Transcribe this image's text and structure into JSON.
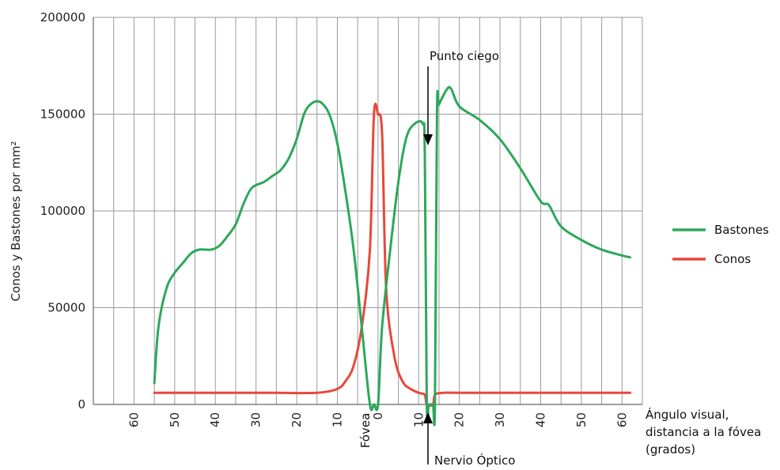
{
  "chart_data": {
    "type": "line",
    "title": "",
    "ylabel": "Conos y Bastones por mm²",
    "xlabel": "Ángulo visual, distancia a la fóvea (grados)",
    "xlabel_lines": [
      "Ángulo visual,",
      "distancia a la fóvea",
      "(grados)"
    ],
    "ylim": [
      0,
      200000
    ],
    "xlim": [
      -70,
      65
    ],
    "y_ticks": [
      0,
      50000,
      100000,
      150000,
      200000
    ],
    "y_tick_labels": [
      "0",
      "50000",
      "100000",
      "150000",
      "200000"
    ],
    "x_ticks": [
      -60,
      -50,
      -40,
      -30,
      -20,
      -10,
      0,
      10,
      20,
      30,
      40,
      50,
      60
    ],
    "x_tick_labels": [
      "60",
      "50",
      "40",
      "30",
      "20",
      "10",
      "0",
      "10",
      "20",
      "30",
      "40",
      "50",
      "60"
    ],
    "grid": true,
    "legend_position": "right",
    "series": [
      {
        "name": "Bastones",
        "color": "#2ca85a",
        "x": [
          -55,
          -54,
          -52,
          -50,
          -48,
          -46,
          -44,
          -41,
          -39,
          -37,
          -35,
          -33,
          -31,
          -28,
          -26,
          -24,
          -22,
          -20,
          -18,
          -16,
          -14,
          -12,
          -10,
          -8,
          -6,
          -4,
          -2,
          -1,
          0,
          1,
          3,
          5,
          7,
          9,
          11,
          11.5,
          12,
          12.5,
          13.5,
          14,
          14.5,
          15,
          17,
          18,
          20,
          25,
          30,
          35,
          40,
          42,
          45,
          50,
          55,
          60,
          62
        ],
        "y": [
          11000,
          40000,
          60000,
          68000,
          73000,
          78000,
          80000,
          80000,
          82000,
          87000,
          93000,
          104000,
          112000,
          115000,
          118000,
          121000,
          127000,
          137000,
          151000,
          156000,
          156000,
          150000,
          135000,
          110000,
          80000,
          40000,
          0,
          0,
          0,
          40000,
          80000,
          115000,
          138000,
          145000,
          145000,
          130000,
          0,
          0,
          0,
          0,
          150000,
          155000,
          163000,
          163000,
          154000,
          147000,
          137000,
          122000,
          105000,
          103000,
          92000,
          85000,
          80000,
          77000,
          76000
        ]
      },
      {
        "name": "Conos",
        "color": "#e8473c",
        "x": [
          -55,
          -45,
          -35,
          -25,
          -15,
          -10,
          -8,
          -6,
          -4,
          -2,
          -1,
          0,
          1,
          2,
          4,
          6,
          8,
          10,
          11.5,
          12,
          13.5,
          14,
          16,
          20,
          30,
          40,
          50,
          60,
          62
        ],
        "y": [
          6000,
          6000,
          6000,
          6000,
          6000,
          8000,
          12000,
          20000,
          40000,
          80000,
          150000,
          150000,
          140000,
          60000,
          25000,
          12000,
          8000,
          6000,
          5000,
          0,
          0,
          5000,
          6000,
          6000,
          6000,
          6000,
          6000,
          6000,
          6000
        ]
      }
    ],
    "annotations": {
      "blind_spot": "Punto ciego",
      "optic_nerve": "Nervio Óptico",
      "fovea": "Fóvea"
    }
  }
}
